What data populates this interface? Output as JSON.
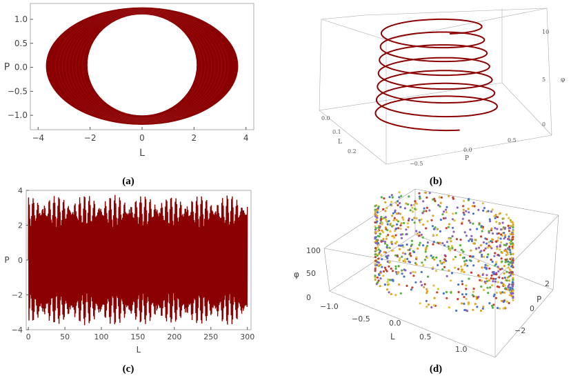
{
  "captions": [
    "(a)",
    "(b)",
    "(c)",
    "(d)"
  ],
  "colors": {
    "curve": "#8b0000",
    "frame": "#999999",
    "axis": "#555555",
    "scatter": [
      "#4a74c9",
      "#e0a020",
      "#58b040",
      "#9060c0",
      "#c04030",
      "#e0c040"
    ]
  },
  "chart_data": [
    {
      "id": "a",
      "type": "line",
      "title": "",
      "xlabel": "L",
      "ylabel": "P",
      "xlim": [
        -4.3,
        4.3
      ],
      "ylim": [
        -1.3,
        1.33
      ],
      "xticks": [
        -4,
        -2,
        0,
        2,
        4
      ],
      "yticks": [
        -1.0,
        -0.5,
        0.0,
        0.5,
        1.0
      ],
      "xtick_labels": [
        "−4",
        "−2",
        "0",
        "2",
        "4"
      ],
      "ytick_labels": [
        "−1.0",
        "−0.5",
        "0.0",
        "0.5",
        "1.0"
      ],
      "series": [
        {
          "shape": "filled band between two ellipses",
          "outer": {
            "x_extent": [
              -3.7,
              3.7
            ],
            "y_extent": [
              -1.2,
              1.25
            ]
          },
          "inner": {
            "x_extent": [
              -2.1,
              2.1
            ],
            "y_extent": [
              -1.0,
              1.1
            ]
          }
        }
      ]
    },
    {
      "id": "b",
      "type": "line",
      "projection": "3d",
      "title": "",
      "xlabel": "L",
      "ylabel": "P",
      "zlabel": "φ",
      "xticks": [
        0.0,
        0.1,
        0.2
      ],
      "xtick_labels": [
        "0.0",
        "0.1",
        "0.2"
      ],
      "yticks": [
        -0.5,
        0.0,
        0.5
      ],
      "ytick_labels": [
        "−0.5",
        "0.0",
        "0.5"
      ],
      "zticks": [
        0,
        5,
        10
      ],
      "ztick_labels": [
        "0",
        "5",
        "10"
      ],
      "series": [
        {
          "shape": "helix",
          "turns": 7,
          "z_range": [
            0,
            10
          ]
        }
      ]
    },
    {
      "id": "c",
      "type": "line",
      "title": "",
      "xlabel": "L",
      "ylabel": "P",
      "xlim": [
        -3,
        305
      ],
      "ylim": [
        -4,
        4
      ],
      "xticks": [
        0,
        50,
        100,
        150,
        200,
        250,
        300
      ],
      "xtick_labels": [
        "0",
        "50",
        "100",
        "150",
        "200",
        "250",
        "300"
      ],
      "yticks": [
        -4,
        -2,
        0,
        2,
        4
      ],
      "ytick_labels": [
        "−4",
        "−2",
        "0",
        "2",
        "4"
      ],
      "series": [
        {
          "shape": "oscillation",
          "x_range": [
            0,
            300
          ],
          "amplitude": 3.75
        }
      ]
    },
    {
      "id": "d",
      "type": "scatter",
      "projection": "3d",
      "title": "",
      "xlabel": "L",
      "ylabel": "P",
      "zlabel": "φ",
      "xticks": [
        -1.0,
        -0.5,
        0.0,
        0.5,
        1.0
      ],
      "xtick_labels": [
        "−1.0",
        "−0.5",
        "0.0",
        "0.5",
        "1.0"
      ],
      "yticks": [
        -2,
        0,
        2
      ],
      "ytick_labels": [
        "−2",
        "0",
        "2"
      ],
      "zticks": [
        0,
        50,
        100
      ],
      "ztick_labels": [
        "0",
        "50",
        "100"
      ],
      "series": [
        {
          "shape": "points scattered on a cylinder",
          "count": 900
        }
      ]
    }
  ]
}
